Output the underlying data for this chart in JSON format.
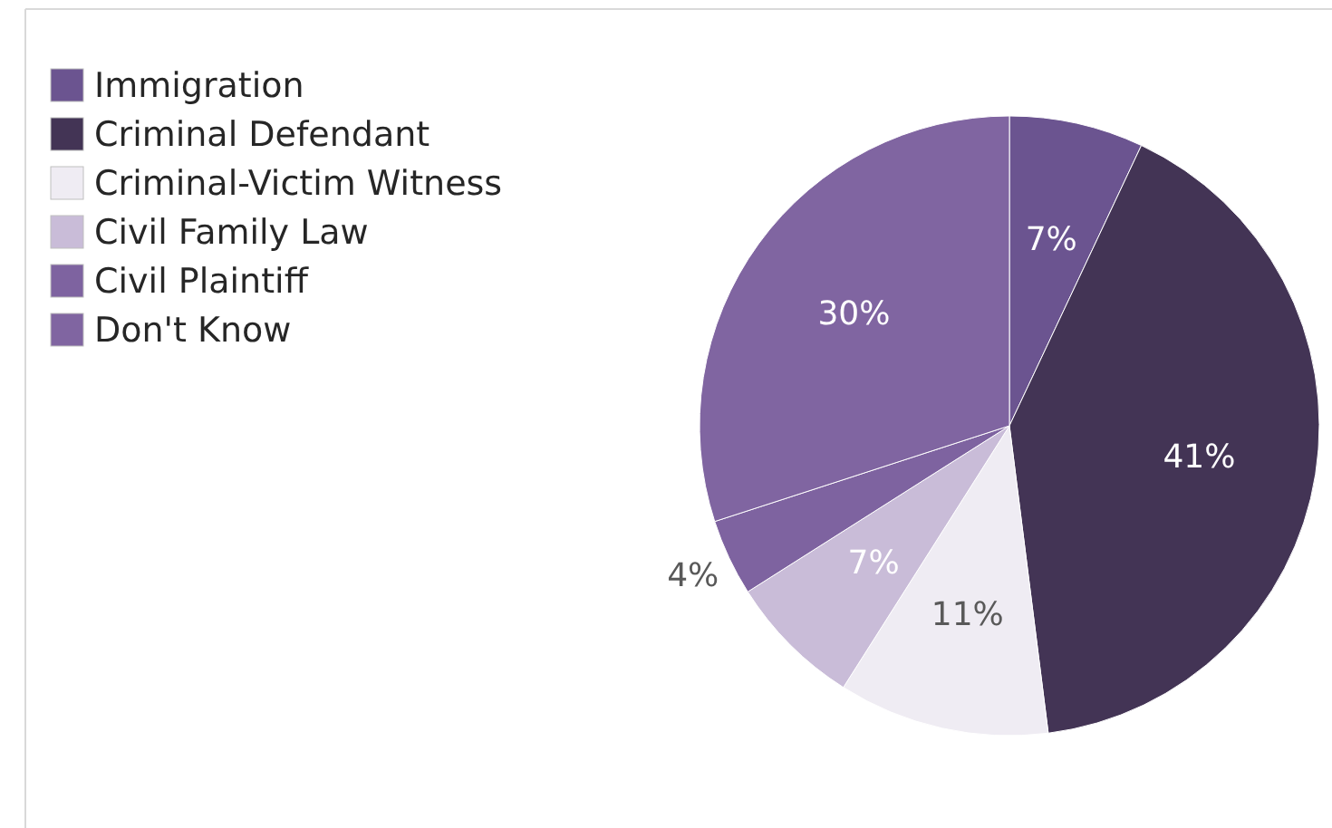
{
  "chart_data": {
    "type": "pie",
    "categories": [
      "Immigration",
      "Criminal Defendant",
      "Criminal-Victim Witness",
      "Civil Family Law",
      "Civil Plaintiff",
      "Don't Know"
    ],
    "values": [
      7,
      41,
      11,
      7,
      4,
      30
    ],
    "colors": [
      "#6b5490",
      "#433455",
      "#efecf3",
      "#c9bcd8",
      "#7e63a0",
      "#8065a1"
    ],
    "value_labels": [
      "7%",
      "41%",
      "11%",
      "7%",
      "4%",
      "30%"
    ],
    "legend": "top left"
  }
}
